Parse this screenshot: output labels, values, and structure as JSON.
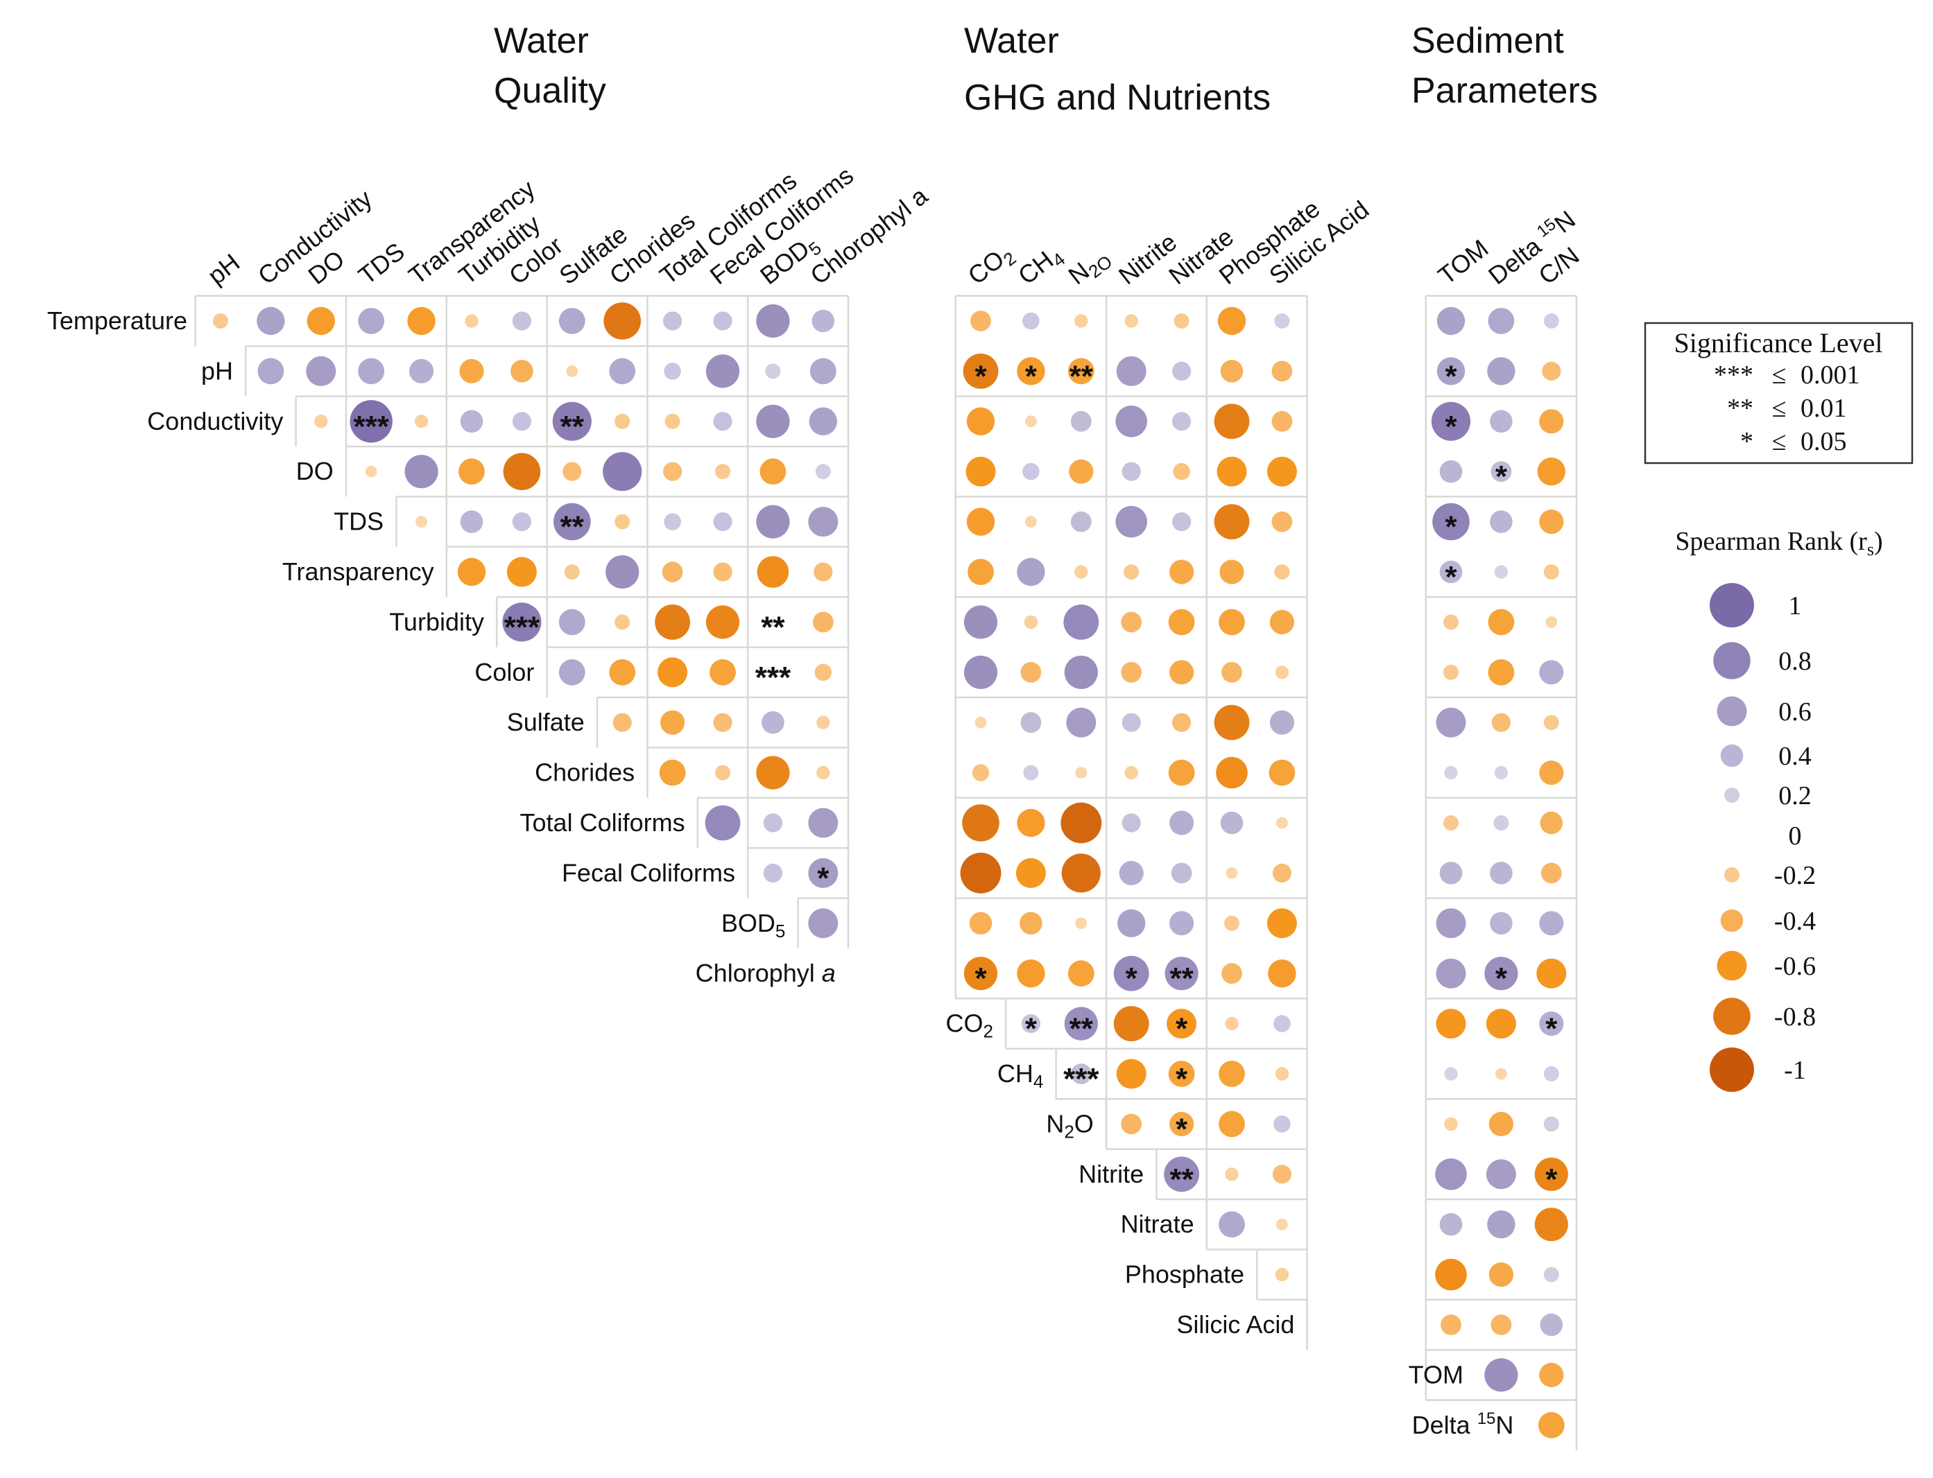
{
  "chart_data": {
    "type": "heatmap",
    "titles": {
      "water_quality": [
        "Water",
        "Quality"
      ],
      "ghg": [
        "Water",
        "GHG and Nutrients"
      ],
      "sediment": [
        "Sediment",
        "Parameters"
      ]
    },
    "rows": [
      "Temperature",
      "pH",
      "Conductivity",
      "DO",
      "TDS",
      "Transparency",
      "Turbidity",
      "Color",
      "Sulfate",
      "Chorides",
      "Total Coliforms",
      "Fecal Coliforms",
      "BOD5",
      "Chlorophyl a",
      "CO2",
      "CH4",
      "N2O",
      "Nitrite",
      "Nitrate",
      "Phosphate",
      "Silicic Acid",
      "TOM",
      "Delta 15N"
    ],
    "row_labels": [
      "Temperature",
      "pH",
      "Conductivity",
      "DO",
      "TDS",
      "Transparency",
      "Turbidity",
      "Color",
      "Sulfate",
      "Chorides",
      "Total Coliforms",
      "Fecal Coliforms",
      "BOD",
      "Chlorophyl ",
      "CO",
      "CH",
      "N",
      "Nitrite",
      "Nitrate",
      "Phosphate",
      "Silicic Acid",
      "TOM",
      "Delta "
    ],
    "label_subscripts": {
      "BOD5": "5",
      "CO2": "2",
      "CH4": "4",
      "N2O": "2",
      "Chlorophyl a": "a",
      "Delta 15N": "15"
    },
    "wq_columns": [
      "pH",
      "Conductivity",
      "DO",
      "TDS",
      "Transparency",
      "Turbidity",
      "Color",
      "Sulfate",
      "Chorides",
      "Total Coliforms",
      "Fecal Coliforms",
      "BOD5",
      "Chlorophyl a"
    ],
    "ghg_columns": [
      "CO2",
      "CH4",
      "N2O",
      "Nitrite",
      "Nitrate",
      "Phosphate",
      "Silicic Acid"
    ],
    "sed_columns": [
      "TOM",
      "Delta 15N",
      "C/N"
    ],
    "wq_values": [
      [
        -0.2,
        0.55,
        -0.55,
        0.5,
        -0.55,
        -0.15,
        0.3,
        0.5,
        -0.8,
        0.3,
        0.3,
        0.7,
        0.4
      ],
      [
        0.5,
        0.6,
        0.5,
        0.45,
        -0.45,
        -0.4,
        -0.1,
        0.5,
        0.25,
        0.7,
        0.2,
        0.5
      ],
      [
        -0.15,
        0.95,
        -0.15,
        0.4,
        0.3,
        0.85,
        -0.2,
        -0.2,
        0.3,
        0.7,
        0.55
      ],
      [
        -0.1,
        0.7,
        -0.5,
        -0.8,
        -0.3,
        0.85,
        -0.3,
        -0.2,
        -0.5,
        0.2
      ],
      [
        -0.1,
        0.4,
        0.3,
        0.8,
        -0.2,
        0.25,
        0.3,
        0.7,
        0.6
      ],
      [
        -0.55,
        -0.6,
        -0.2,
        0.7,
        -0.35,
        -0.3,
        -0.65,
        -0.3
      ],
      [
        0.85,
        0.5,
        -0.2,
        -0.75,
        -0.7,
        0.0,
        -0.35
      ],
      [
        0.5,
        -0.5,
        -0.6,
        -0.5,
        0.0,
        -0.25
      ],
      [
        -0.3,
        -0.45,
        -0.3,
        0.4,
        -0.15
      ],
      [
        -0.5,
        -0.2,
        -0.7,
        -0.15
      ],
      [
        0.75,
        0.3,
        0.6
      ],
      [
        0.3,
        0.6
      ],
      [
        0.6
      ]
    ],
    "wq_sig": [
      [
        "",
        "",
        "",
        "",
        "",
        "",
        "",
        "",
        "",
        "",
        "",
        "",
        ""
      ],
      [
        "",
        "",
        "",
        "",
        "",
        "",
        "",
        "",
        "",
        "",
        "",
        ""
      ],
      [
        "",
        "***",
        "",
        "",
        "",
        "**",
        "",
        "",
        "",
        "",
        ""
      ],
      [
        "",
        "",
        "",
        "",
        "",
        "",
        "",
        "",
        "",
        ""
      ],
      [
        "",
        "",
        "",
        "**",
        "",
        "",
        "",
        "",
        ""
      ],
      [
        "",
        "",
        "",
        "",
        "",
        "",
        "",
        ""
      ],
      [
        "***",
        "",
        "",
        "",
        "",
        "**",
        ""
      ],
      [
        "",
        "",
        "",
        "",
        "***",
        ""
      ],
      [
        "",
        "",
        "",
        "",
        " "
      ],
      [
        "",
        "",
        "",
        ""
      ],
      [
        "",
        "",
        ""
      ],
      [
        "",
        "*"
      ],
      [
        ""
      ]
    ],
    "ghg_values": [
      [
        -0.35,
        0.25,
        -0.15,
        -0.15,
        -0.2,
        -0.55,
        0.2
      ],
      [
        -0.75,
        -0.55,
        -0.5,
        0.6,
        0.3,
        -0.4,
        -0.35
      ],
      [
        -0.55,
        -0.1,
        0.35,
        0.65,
        0.3,
        -0.75,
        -0.35
      ],
      [
        -0.6,
        0.25,
        -0.45,
        0.3,
        -0.25,
        -0.6,
        -0.6
      ],
      [
        -0.55,
        -0.1,
        0.35,
        0.65,
        0.3,
        -0.75,
        -0.35
      ],
      [
        -0.5,
        0.55,
        -0.15,
        -0.2,
        -0.45,
        -0.45,
        -0.2
      ],
      [
        0.7,
        -0.15,
        0.75,
        -0.35,
        -0.5,
        -0.5,
        -0.45
      ],
      [
        0.7,
        -0.35,
        0.7,
        -0.35,
        -0.45,
        -0.35,
        -0.15
      ],
      [
        -0.1,
        0.35,
        0.6,
        0.3,
        -0.3,
        -0.75,
        0.45
      ],
      [
        -0.25,
        0.2,
        -0.1,
        -0.15,
        -0.5,
        -0.65,
        -0.5
      ],
      [
        -0.8,
        -0.55,
        -0.9,
        0.3,
        0.45,
        0.4,
        -0.1
      ],
      [
        -0.9,
        -0.6,
        -0.85,
        0.45,
        0.35,
        -0.1,
        -0.3
      ],
      [
        -0.4,
        -0.4,
        -0.1,
        0.55,
        0.45,
        -0.2,
        -0.6
      ],
      [
        -0.7,
        -0.55,
        -0.5,
        0.75,
        0.7,
        -0.35,
        -0.55
      ],
      [
        0.3,
        0.7,
        -0.75,
        -0.6,
        -0.15,
        0.25
      ],
      [
        0.35,
        -0.6,
        -0.5,
        -0.5,
        -0.15
      ],
      [
        -0.35,
        -0.45,
        -0.5,
        0.25
      ],
      [
        0.75,
        -0.15,
        -0.3
      ],
      [
        0.5,
        -0.1
      ],
      [
        -0.15
      ],
      []
    ],
    "ghg_sig": [
      [
        "",
        "",
        "",
        "",
        "",
        "",
        ""
      ],
      [
        "*",
        "*",
        "**",
        "",
        "",
        "",
        ""
      ],
      [
        "",
        "",
        "",
        "",
        "",
        "",
        ""
      ],
      [
        "",
        "",
        "",
        "",
        "",
        "",
        ""
      ],
      [
        "",
        "",
        "",
        "",
        "",
        "",
        ""
      ],
      [
        "",
        "",
        "",
        "",
        "",
        "",
        ""
      ],
      [
        "",
        "",
        "",
        "",
        "",
        "",
        ""
      ],
      [
        "",
        "",
        "",
        "",
        "",
        "",
        ""
      ],
      [
        "",
        "",
        "",
        "",
        "",
        "",
        ""
      ],
      [
        "",
        "",
        "",
        "",
        "",
        "",
        ""
      ],
      [
        "",
        "",
        "",
        "",
        "",
        "",
        ""
      ],
      [
        "",
        "",
        "",
        "",
        "",
        "",
        ""
      ],
      [
        "",
        "",
        "",
        "",
        "",
        "",
        ""
      ],
      [
        "*",
        "",
        "",
        "*",
        "**",
        "",
        ""
      ],
      [
        "*",
        "**",
        "",
        "*",
        "",
        ""
      ],
      [
        "***",
        "",
        "*",
        "",
        " "
      ],
      [
        "",
        "*",
        "",
        " "
      ],
      [
        "**",
        "",
        ""
      ],
      [
        "",
        ""
      ],
      [
        ""
      ],
      []
    ],
    "sed_values": [
      [
        0.55,
        0.5,
        0.2
      ],
      [
        0.55,
        0.55,
        -0.3
      ],
      [
        0.85,
        0.4,
        -0.45
      ],
      [
        0.4,
        0.35,
        -0.55
      ],
      [
        0.8,
        0.4,
        -0.45
      ],
      [
        0.4,
        0.15,
        -0.2
      ],
      [
        -0.2,
        -0.5,
        -0.1
      ],
      [
        -0.2,
        -0.5,
        0.45
      ],
      [
        0.6,
        -0.3,
        -0.2
      ],
      [
        0.15,
        0.15,
        -0.45
      ],
      [
        -0.2,
        0.2,
        -0.4
      ],
      [
        0.4,
        0.4,
        -0.35
      ],
      [
        0.6,
        0.4,
        0.45
      ],
      [
        0.6,
        0.7,
        -0.6
      ],
      [
        -0.6,
        -0.6,
        0.45
      ],
      [
        0.15,
        -0.1,
        0.2
      ],
      [
        -0.15,
        -0.45,
        0.2
      ],
      [
        0.65,
        0.6,
        -0.7
      ],
      [
        0.4,
        0.55,
        -0.7
      ],
      [
        -0.65,
        -0.45,
        0.2
      ],
      [
        -0.35,
        -0.35,
        0.4
      ],
      [
        0.7,
        -0.45
      ],
      [
        -0.5
      ]
    ],
    "sed_sig": [
      [
        "",
        "",
        ""
      ],
      [
        "*",
        "",
        ""
      ],
      [
        "*",
        "",
        ""
      ],
      [
        "",
        "*",
        ""
      ],
      [
        "*",
        "",
        ""
      ],
      [
        "*",
        "",
        ""
      ],
      [
        "",
        "",
        ""
      ],
      [
        "",
        "",
        ""
      ],
      [
        "",
        "",
        ""
      ],
      [
        "",
        "",
        ""
      ],
      [
        "",
        "",
        ""
      ],
      [
        "",
        "",
        ""
      ],
      [
        "",
        "",
        ""
      ],
      [
        "",
        "*",
        ""
      ],
      [
        "",
        "",
        "*"
      ],
      [
        "",
        "",
        ""
      ],
      [
        "",
        "",
        ""
      ],
      [
        "",
        "",
        "*"
      ],
      [
        "",
        "",
        ""
      ],
      [
        "",
        "",
        ""
      ],
      [
        "",
        "",
        ""
      ],
      [
        "",
        ""
      ],
      [
        ""
      ]
    ],
    "legend": {
      "significance_title": "Significance Level",
      "significance_levels": [
        {
          "stars": "***",
          "le": "≤",
          "value": "0.001"
        },
        {
          "stars": "**",
          "le": "≤",
          "value": "0.01"
        },
        {
          "stars": "*",
          "le": "≤",
          "value": "0.05"
        }
      ],
      "rank_title_main": "Spearman Rank (r",
      "rank_title_sub": "s",
      "rank_title_end": ")",
      "rank_values": [
        1,
        0.8,
        0.6,
        0.4,
        0.2,
        0,
        -0.2,
        -0.4,
        -0.6,
        -0.8,
        -1
      ],
      "rank_labels": [
        "1",
        "0.8",
        "0.6",
        "0.4",
        "0.2",
        "0",
        "-0.2",
        "-0.4",
        "-0.6",
        "-0.8",
        "-1"
      ]
    },
    "colors": {
      "positive_strong": "#7b6aa8",
      "positive_light": "#e6e6f2",
      "negative_strong": "#c8570a",
      "negative_light": "#fbe3c5",
      "negative_mid": "#f5961e",
      "grid": "#d8d8d8"
    }
  }
}
